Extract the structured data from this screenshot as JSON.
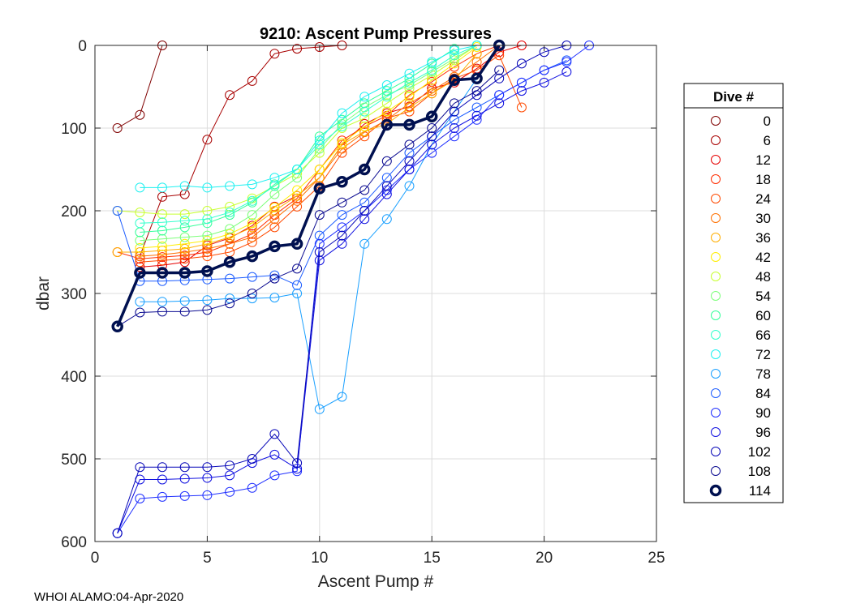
{
  "chart_data": {
    "type": "line",
    "title": "9210: Ascent Pump Pressures",
    "xlabel": "Ascent Pump #",
    "ylabel": "dbar",
    "xlim": [
      0,
      25
    ],
    "ylim": [
      600,
      0
    ],
    "y_reversed": true,
    "xticks": [
      0,
      5,
      10,
      15,
      20,
      25
    ],
    "yticks": [
      0,
      100,
      200,
      300,
      400,
      500,
      600
    ],
    "grid": true,
    "legend": {
      "title": "Dive #",
      "placement": "right-outside",
      "entries": [
        "0",
        "6",
        "12",
        "18",
        "24",
        "30",
        "36",
        "42",
        "48",
        "54",
        "60",
        "66",
        "72",
        "78",
        "84",
        "90",
        "96",
        "102",
        "108",
        "114"
      ],
      "colors": [
        "#7f0000",
        "#a80000",
        "#e60000",
        "#ff2d00",
        "#ff4a00",
        "#ff7000",
        "#ffae00",
        "#ffee00",
        "#c8ff30",
        "#7dff7a",
        "#33ff99",
        "#33ffcc",
        "#1ef0f0",
        "#1aa0ff",
        "#1c5cff",
        "#1f2fff",
        "#1010e0",
        "#0808b8",
        "#0a0a90",
        "#001050"
      ],
      "highlight": "114"
    },
    "series": [
      {
        "name": "0",
        "color": "#7f0000",
        "x": [
          1,
          2,
          3
        ],
        "y": [
          100,
          84,
          0
        ]
      },
      {
        "name": "6",
        "color": "#a80000",
        "x": [
          2,
          3,
          4,
          5,
          6,
          7,
          8,
          9,
          10,
          11
        ],
        "y": [
          255,
          183,
          180,
          114,
          60,
          43,
          10,
          4,
          2,
          0
        ]
      },
      {
        "name": "12",
        "color": "#e60000",
        "x": [
          2,
          3,
          4,
          5,
          6,
          7,
          8,
          9,
          10,
          11,
          12,
          13,
          14,
          15,
          16,
          17,
          18,
          19
        ],
        "y": [
          268,
          266,
          262,
          242,
          233,
          218,
          195,
          182,
          160,
          120,
          95,
          82,
          74,
          52,
          45,
          28,
          8,
          0
        ]
      },
      {
        "name": "18",
        "color": "#ff2d00",
        "x": [
          1,
          2,
          3,
          4,
          5,
          6,
          7,
          8,
          9,
          10,
          11,
          12,
          13,
          14,
          15,
          16,
          17,
          18
        ],
        "y": [
          250,
          258,
          256,
          254,
          250,
          240,
          228,
          205,
          185,
          150,
          115,
          98,
          85,
          60,
          44,
          26,
          10,
          0
        ]
      },
      {
        "name": "24",
        "color": "#ff4a00",
        "x": [
          2,
          3,
          4,
          5,
          6,
          7,
          8,
          9,
          10,
          11,
          12,
          13,
          14,
          15,
          16,
          17,
          18,
          19
        ],
        "y": [
          262,
          260,
          258,
          255,
          250,
          238,
          220,
          195,
          170,
          130,
          110,
          88,
          80,
          58,
          40,
          30,
          12,
          75
        ]
      },
      {
        "name": "30",
        "color": "#ff7000",
        "x": [
          2,
          3,
          4,
          5,
          6,
          7,
          8,
          9,
          10,
          11,
          12,
          13,
          14,
          15,
          16,
          17,
          18
        ],
        "y": [
          255,
          253,
          250,
          246,
          240,
          232,
          210,
          188,
          160,
          125,
          105,
          90,
          70,
          55,
          38,
          20,
          0
        ]
      },
      {
        "name": "36",
        "color": "#ffae00",
        "x": [
          1,
          2,
          3,
          4,
          5,
          6,
          7,
          8,
          9,
          10,
          11,
          12,
          13,
          14,
          15,
          16,
          17
        ],
        "y": [
          250,
          250,
          248,
          246,
          240,
          232,
          220,
          200,
          182,
          160,
          120,
          104,
          95,
          75,
          58,
          42,
          10
        ]
      },
      {
        "name": "42",
        "color": "#ffee00",
        "x": [
          2,
          3,
          4,
          5,
          6,
          7,
          8,
          9,
          10,
          11,
          12,
          13,
          14,
          15,
          16,
          17
        ],
        "y": [
          245,
          243,
          240,
          236,
          228,
          215,
          196,
          175,
          150,
          118,
          98,
          80,
          62,
          42,
          22,
          2
        ]
      },
      {
        "name": "48",
        "color": "#c8ff30",
        "x": [
          1,
          2,
          3,
          4,
          5,
          6,
          7,
          8,
          9,
          10,
          11,
          12,
          13,
          14,
          15,
          16,
          17
        ],
        "y": [
          200,
          202,
          204,
          204,
          200,
          195,
          185,
          170,
          155,
          130,
          100,
          88,
          70,
          52,
          36,
          18,
          0
        ]
      },
      {
        "name": "54",
        "color": "#7dff7a",
        "x": [
          2,
          3,
          4,
          5,
          6,
          7,
          8,
          9,
          10,
          11,
          12,
          13,
          14,
          15,
          16,
          17
        ],
        "y": [
          236,
          234,
          232,
          230,
          222,
          205,
          180,
          160,
          125,
          95,
          75,
          60,
          48,
          32,
          16,
          0
        ]
      },
      {
        "name": "60",
        "color": "#33ff99",
        "x": [
          2,
          3,
          4,
          5,
          6,
          7,
          8,
          9,
          10,
          11,
          12,
          13,
          14,
          15,
          16
        ],
        "y": [
          226,
          224,
          220,
          215,
          205,
          190,
          168,
          150,
          110,
          90,
          70,
          55,
          40,
          22,
          4
        ]
      },
      {
        "name": "66",
        "color": "#33ffcc",
        "x": [
          2,
          3,
          4,
          5,
          6,
          7,
          8,
          9,
          10,
          11,
          12,
          13,
          14,
          15,
          16,
          17
        ],
        "y": [
          215,
          214,
          212,
          210,
          202,
          188,
          170,
          150,
          120,
          98,
          80,
          62,
          45,
          30,
          12,
          0
        ]
      },
      {
        "name": "72",
        "color": "#1ef0f0",
        "x": [
          2,
          3,
          4,
          5,
          6,
          7,
          8,
          9,
          10,
          11,
          12,
          13,
          14,
          15,
          16,
          17
        ],
        "y": [
          172,
          172,
          170,
          172,
          170,
          168,
          160,
          150,
          115,
          82,
          62,
          48,
          34,
          20,
          6,
          0
        ]
      },
      {
        "name": "78",
        "color": "#1aa0ff",
        "x": [
          2,
          3,
          4,
          5,
          6,
          7,
          8,
          9,
          10,
          11,
          12,
          13,
          14,
          15,
          16,
          17,
          18
        ],
        "y": [
          310,
          310,
          309,
          308,
          306,
          306,
          305,
          300,
          440,
          425,
          240,
          210,
          170,
          120,
          80,
          40,
          0
        ]
      },
      {
        "name": "84",
        "color": "#1c5cff",
        "x": [
          1,
          2,
          3,
          4,
          5,
          6,
          7,
          8,
          9,
          10,
          11,
          12,
          13,
          14,
          15,
          16,
          17,
          18,
          19,
          20,
          21
        ],
        "y": [
          200,
          285,
          285,
          284,
          283,
          282,
          280,
          278,
          290,
          230,
          205,
          190,
          160,
          130,
          110,
          90,
          75,
          60,
          45,
          30,
          18
        ]
      },
      {
        "name": "90",
        "color": "#1f2fff",
        "x": [
          1,
          2,
          3,
          4,
          5,
          6,
          7,
          8,
          9,
          10,
          11,
          12,
          13,
          14,
          15,
          16,
          17,
          18,
          19,
          20,
          21,
          22
        ],
        "y": [
          590,
          548,
          546,
          545,
          544,
          540,
          535,
          520,
          515,
          240,
          220,
          200,
          175,
          150,
          130,
          110,
          90,
          60,
          45,
          30,
          20,
          0
        ]
      },
      {
        "name": "96",
        "color": "#1010e0",
        "x": [
          1,
          2,
          3,
          4,
          5,
          6,
          7,
          8,
          9,
          10,
          11,
          12,
          13,
          14,
          15,
          16,
          17,
          18,
          19,
          20,
          21
        ],
        "y": [
          590,
          525,
          525,
          524,
          523,
          520,
          505,
          495,
          512,
          260,
          240,
          210,
          180,
          150,
          120,
          100,
          85,
          70,
          55,
          45,
          32
        ]
      },
      {
        "name": "102",
        "color": "#0808b8",
        "x": [
          1,
          2,
          3,
          4,
          5,
          6,
          7,
          8,
          9,
          10,
          11,
          12,
          13,
          14,
          15,
          16,
          17,
          18,
          19,
          20,
          21
        ],
        "y": [
          590,
          510,
          510,
          510,
          510,
          508,
          500,
          470,
          505,
          250,
          230,
          200,
          170,
          140,
          110,
          80,
          60,
          40,
          22,
          8,
          0
        ]
      },
      {
        "name": "108",
        "color": "#0a0a90",
        "x": [
          1,
          2,
          3,
          4,
          5,
          6,
          7,
          8,
          9,
          10,
          11,
          12,
          13,
          14,
          15,
          16,
          17,
          18
        ],
        "y": [
          340,
          323,
          322,
          322,
          320,
          312,
          300,
          282,
          270,
          205,
          190,
          175,
          140,
          120,
          100,
          70,
          55,
          30
        ]
      },
      {
        "name": "114",
        "color": "#001050",
        "x": [
          1,
          2,
          3,
          4,
          5,
          6,
          7,
          8,
          9,
          10,
          11,
          12,
          13,
          14,
          15,
          16,
          17,
          18
        ],
        "y": [
          340,
          275,
          275,
          275,
          273,
          262,
          255,
          243,
          240,
          173,
          165,
          150,
          96,
          96,
          86,
          42,
          40,
          0
        ]
      }
    ]
  },
  "footer": {
    "note": "WHOI ALAMO:04-Apr-2020"
  }
}
